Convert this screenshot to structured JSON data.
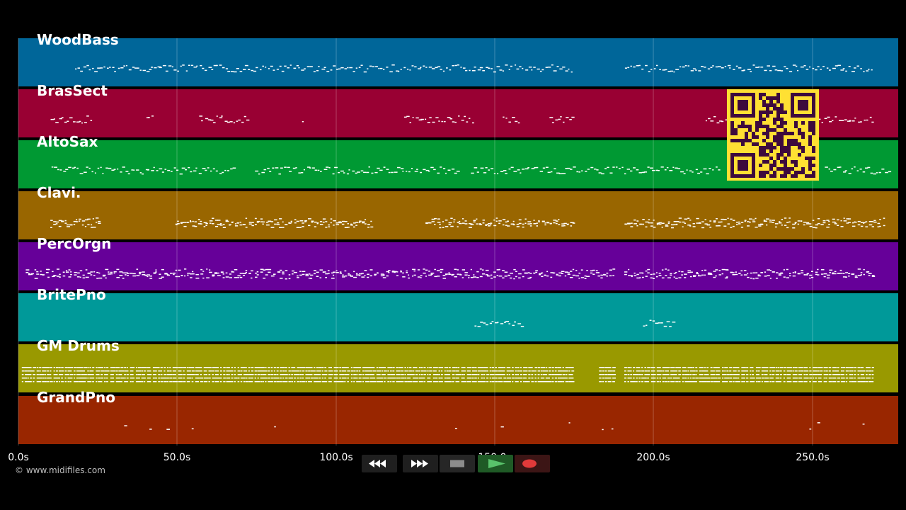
{
  "tracks": [
    {
      "name": "WoodBass",
      "color": "#006699"
    },
    {
      "name": "BrasSect",
      "color": "#990033"
    },
    {
      "name": "AltoSax",
      "color": "#009933"
    },
    {
      "name": "Clavi.",
      "color": "#996600"
    },
    {
      "name": "PercOrgn",
      "color": "#660099"
    },
    {
      "name": "BritePno",
      "color": "#009999"
    },
    {
      "name": "GM Drums",
      "color": "#999900"
    },
    {
      "name": "GrandPno",
      "color": "#992600"
    }
  ],
  "timeline": {
    "ticks": [
      "0.0s",
      "50.0s",
      "100.0s",
      "150.0s",
      "200.0s",
      "250.0s"
    ]
  },
  "copyright": "© www.midifiles.com",
  "transport": {
    "rewind_icon": "rewind-icon",
    "fast_forward_icon": "fast-forward-icon",
    "stop_icon": "stop-icon",
    "play_icon": "play-icon",
    "record_icon": "record-icon"
  },
  "qr_icon": "qr-code-icon"
}
